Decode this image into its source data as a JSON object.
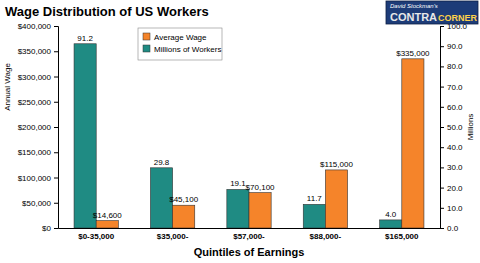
{
  "chart_data": {
    "type": "bar",
    "title": "Wage Distribution of US Workers",
    "x_label": "Quintiles of Earnings",
    "y_label": "Annual Wage",
    "y2_label": "Millions",
    "annotations": [
      "David Stockman's",
      "CONTRA",
      "CORNER"
    ],
    "categories": [
      "$0-35,000",
      "$35,000-",
      "$57,000-",
      "$88,000-",
      "$165,000"
    ],
    "series": [
      {
        "name": "Millions of Workers",
        "color": "#1f8b83",
        "axis": "y2",
        "values": [
          91.2,
          29.8,
          19.1,
          11.7,
          4.0
        ],
        "value_labels": [
          "91.2",
          "29.8",
          "19.1",
          "11.7",
          "4.0"
        ]
      },
      {
        "name": "Average Wage",
        "color": "#f5842a",
        "values": [
          14600,
          45100,
          70100,
          115000,
          335000
        ],
        "value_labels": [
          "$14,600",
          "$45,100",
          "$70,100",
          "$115,000",
          "$335,000"
        ]
      }
    ],
    "ylim": [
      0,
      400000
    ],
    "yticks": [
      {
        "value": 0,
        "label": "$0"
      },
      {
        "value": 50000,
        "label": "$50,000"
      },
      {
        "value": 100000,
        "label": "$100,000"
      },
      {
        "value": 150000,
        "label": "$150,000"
      },
      {
        "value": 200000,
        "label": "$200,000"
      },
      {
        "value": 250000,
        "label": "$250,000"
      },
      {
        "value": 300000,
        "label": "$300,000"
      },
      {
        "value": 350000,
        "label": "$350,000"
      },
      {
        "value": 400000,
        "label": "$400,000"
      }
    ],
    "y2lim": [
      0,
      100
    ],
    "y2ticks": [
      {
        "value": 0,
        "label": "0.0"
      },
      {
        "value": 10,
        "label": "10.0"
      },
      {
        "value": 20,
        "label": "20.0"
      },
      {
        "value": 30,
        "label": "30.0"
      },
      {
        "value": 40,
        "label": "40.0"
      },
      {
        "value": 50,
        "label": "50.0"
      },
      {
        "value": 60,
        "label": "60.0"
      },
      {
        "value": 70,
        "label": "70.0"
      },
      {
        "value": 80,
        "label": "80.0"
      },
      {
        "value": 90,
        "label": "90.0"
      },
      {
        "value": 100,
        "label": "100.0"
      }
    ],
    "grid": false,
    "legend": "top-left",
    "data_labels": true
  }
}
